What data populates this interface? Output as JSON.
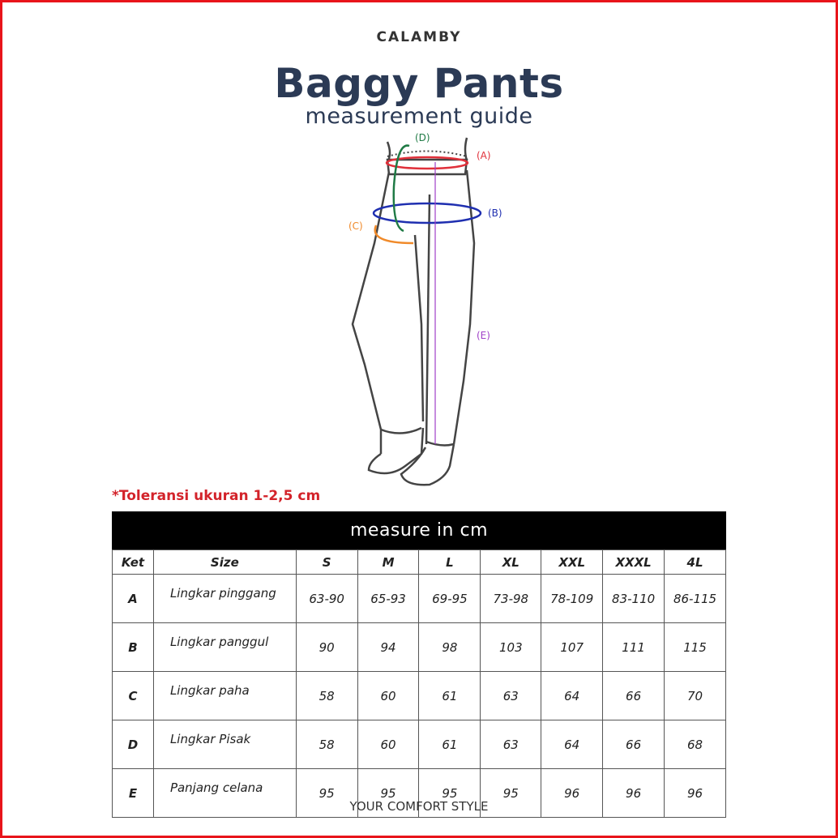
{
  "brand": "CALAMBY",
  "title": "Baggy Pants",
  "subtitle": "measurement guide",
  "diagram_labels": {
    "A": "(A)",
    "B": "(B)",
    "C": "(C)",
    "D": "(D)",
    "E": "(E)"
  },
  "colors": {
    "A": "#e0303a",
    "B": "#1f2fb0",
    "C": "#f08a2a",
    "D": "#1f7a45",
    "E": "#a040c8",
    "title": "#2b3a55",
    "tolerance": "#d3232a",
    "border": "#e8141b"
  },
  "tolerance_note": "*Toleransi ukuran 1-2,5 cm",
  "table": {
    "banner": "measure in cm",
    "headers": [
      "Ket",
      "Size",
      "S",
      "M",
      "L",
      "XL",
      "XXL",
      "XXXL",
      "4L"
    ],
    "rows": [
      {
        "ket": "A",
        "desc": "Lingkar pinggang",
        "values": [
          "63-90",
          "65-93",
          "69-95",
          "73-98",
          "78-109",
          "83-110",
          "86-115"
        ]
      },
      {
        "ket": "B",
        "desc": "Lingkar panggul",
        "values": [
          "90",
          "94",
          "98",
          "103",
          "107",
          "111",
          "115"
        ]
      },
      {
        "ket": "C",
        "desc": "Lingkar paha",
        "values": [
          "58",
          "60",
          "61",
          "63",
          "64",
          "66",
          "70"
        ]
      },
      {
        "ket": "D",
        "desc": "Lingkar Pisak",
        "values": [
          "58",
          "60",
          "61",
          "63",
          "64",
          "66",
          "68"
        ]
      },
      {
        "ket": "E",
        "desc": "Panjang celana",
        "values": [
          "95",
          "95",
          "95",
          "95",
          "96",
          "96",
          "96"
        ]
      }
    ]
  },
  "footer": "YOUR COMFORT STYLE"
}
